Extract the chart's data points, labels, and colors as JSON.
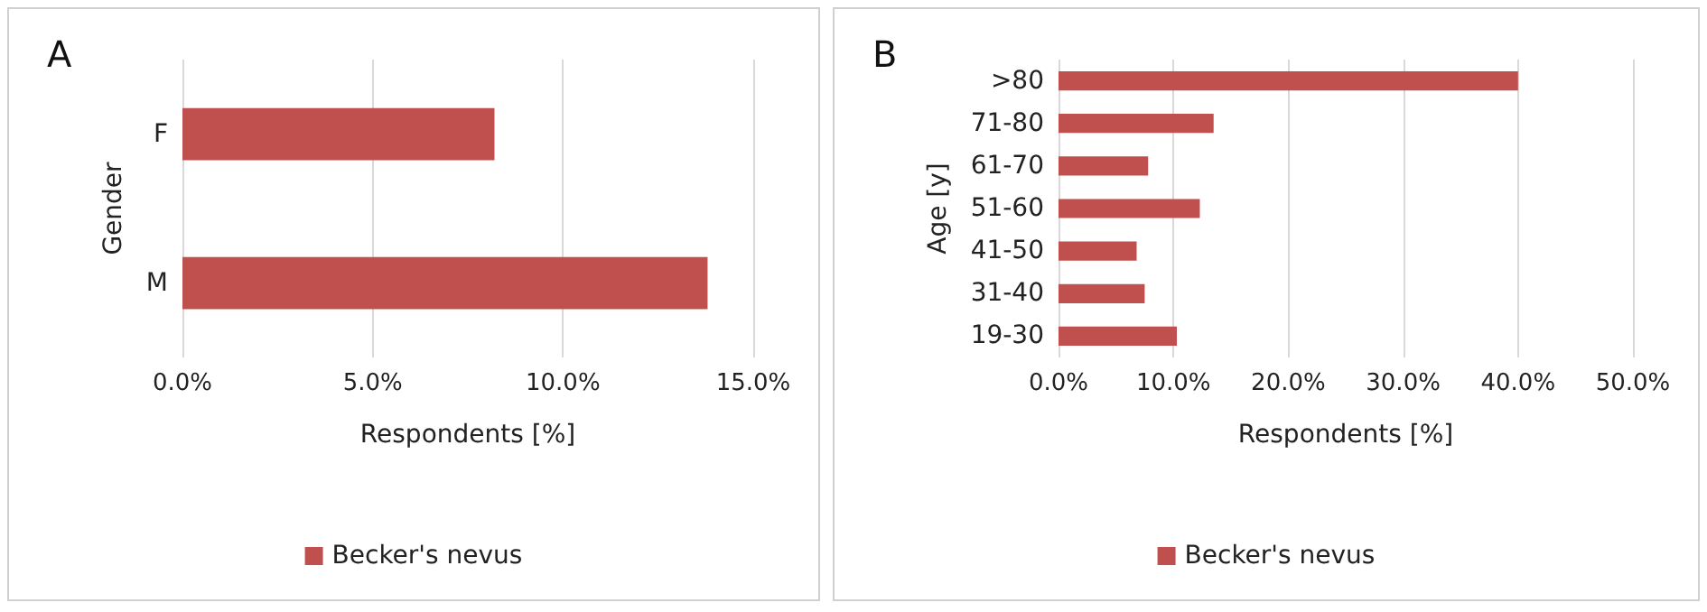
{
  "chart_data": [
    {
      "type": "bar",
      "orientation": "horizontal",
      "title": "A",
      "xlabel": "Respondents [%]",
      "ylabel": "Gender",
      "categories": [
        "F",
        "M"
      ],
      "series": [
        {
          "name": "Becker's nevus",
          "color": "#c0504d",
          "values": [
            8.2,
            13.8
          ]
        }
      ],
      "xlim": [
        0,
        15
      ],
      "xticks": [
        {
          "value": 0,
          "label": "0.0%"
        },
        {
          "value": 5,
          "label": "5.0%"
        },
        {
          "value": 10,
          "label": "10.0%"
        },
        {
          "value": 15,
          "label": "15.0%"
        }
      ],
      "grid": "x",
      "legend": "bottom"
    },
    {
      "type": "bar",
      "orientation": "horizontal",
      "title": "B",
      "xlabel": "Respondents [%]",
      "ylabel": "Age [y]",
      "categories": [
        ">80",
        "71-80",
        "61-70",
        "51-60",
        "41-50",
        "31-40",
        "19-30"
      ],
      "series": [
        {
          "name": "Becker's nevus",
          "color": "#c0504d",
          "values": [
            40.0,
            13.5,
            7.8,
            12.3,
            6.8,
            7.5,
            10.3
          ]
        }
      ],
      "xlim": [
        0,
        50
      ],
      "xticks": [
        {
          "value": 0,
          "label": "0.0%"
        },
        {
          "value": 10,
          "label": "10.0%"
        },
        {
          "value": 20,
          "label": "20.0%"
        },
        {
          "value": 30,
          "label": "30.0%"
        },
        {
          "value": 40,
          "label": "40.0%"
        },
        {
          "value": 50,
          "label": "50.0%"
        }
      ],
      "grid": "x",
      "legend": "bottom"
    }
  ]
}
